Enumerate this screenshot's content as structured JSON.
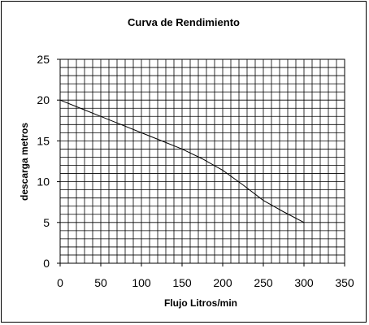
{
  "chart_data": {
    "type": "line",
    "title": "Curva de Rendimiento",
    "xlabel": "Flujo Litros/min",
    "ylabel": "descarga  metros",
    "xlim": [
      0,
      350
    ],
    "ylim": [
      0,
      25
    ],
    "x_ticks": [
      0,
      50,
      100,
      150,
      200,
      250,
      300,
      350
    ],
    "y_ticks": [
      0,
      5,
      10,
      15,
      20,
      25
    ],
    "grid": true,
    "legend": "none",
    "series": [
      {
        "color": "#000000",
        "x": [
          0,
          25,
          50,
          75,
          100,
          125,
          150,
          175,
          200,
          225,
          250,
          275,
          300
        ],
        "y": [
          20,
          19,
          18,
          17,
          16,
          15,
          14,
          12.8,
          11.4,
          9.6,
          7.7,
          6.3,
          5
        ]
      }
    ]
  }
}
